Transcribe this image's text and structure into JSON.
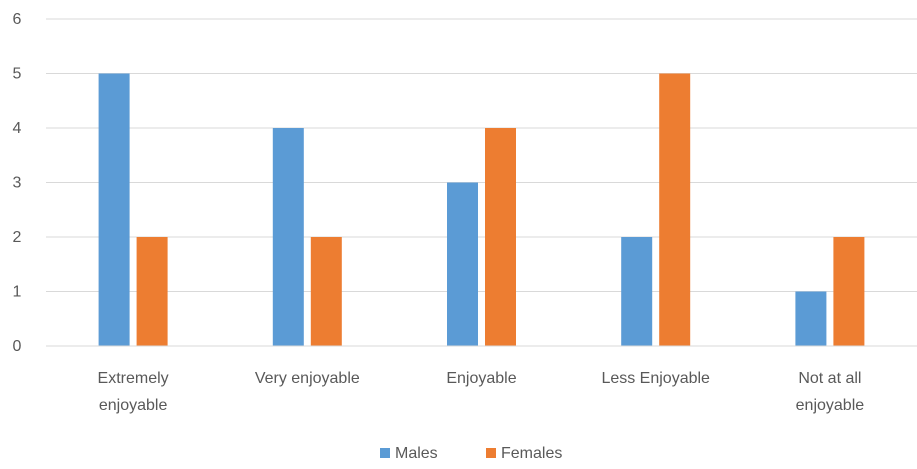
{
  "chart_data": {
    "type": "bar",
    "title": "",
    "xlabel": "",
    "ylabel": "",
    "categories": [
      [
        "Extremely",
        "enjoyable"
      ],
      [
        "Very enjoyable"
      ],
      [
        "Enjoyable"
      ],
      [
        "Less Enjoyable"
      ],
      [
        "Not at all",
        "enjoyable"
      ]
    ],
    "series": [
      {
        "name": "Males",
        "color": "#5B9BD5",
        "values": [
          5,
          4,
          3,
          2,
          1
        ]
      },
      {
        "name": "Females",
        "color": "#ED7D31",
        "values": [
          2,
          2,
          4,
          5,
          2
        ]
      }
    ],
    "ylim": [
      0,
      6
    ],
    "yticks": [
      0,
      1,
      2,
      3,
      4,
      5,
      6
    ],
    "grid": true,
    "legend_position": "bottom",
    "gridline_color": "#D9D9D9",
    "axis_line_color": "#D9D9D9"
  }
}
